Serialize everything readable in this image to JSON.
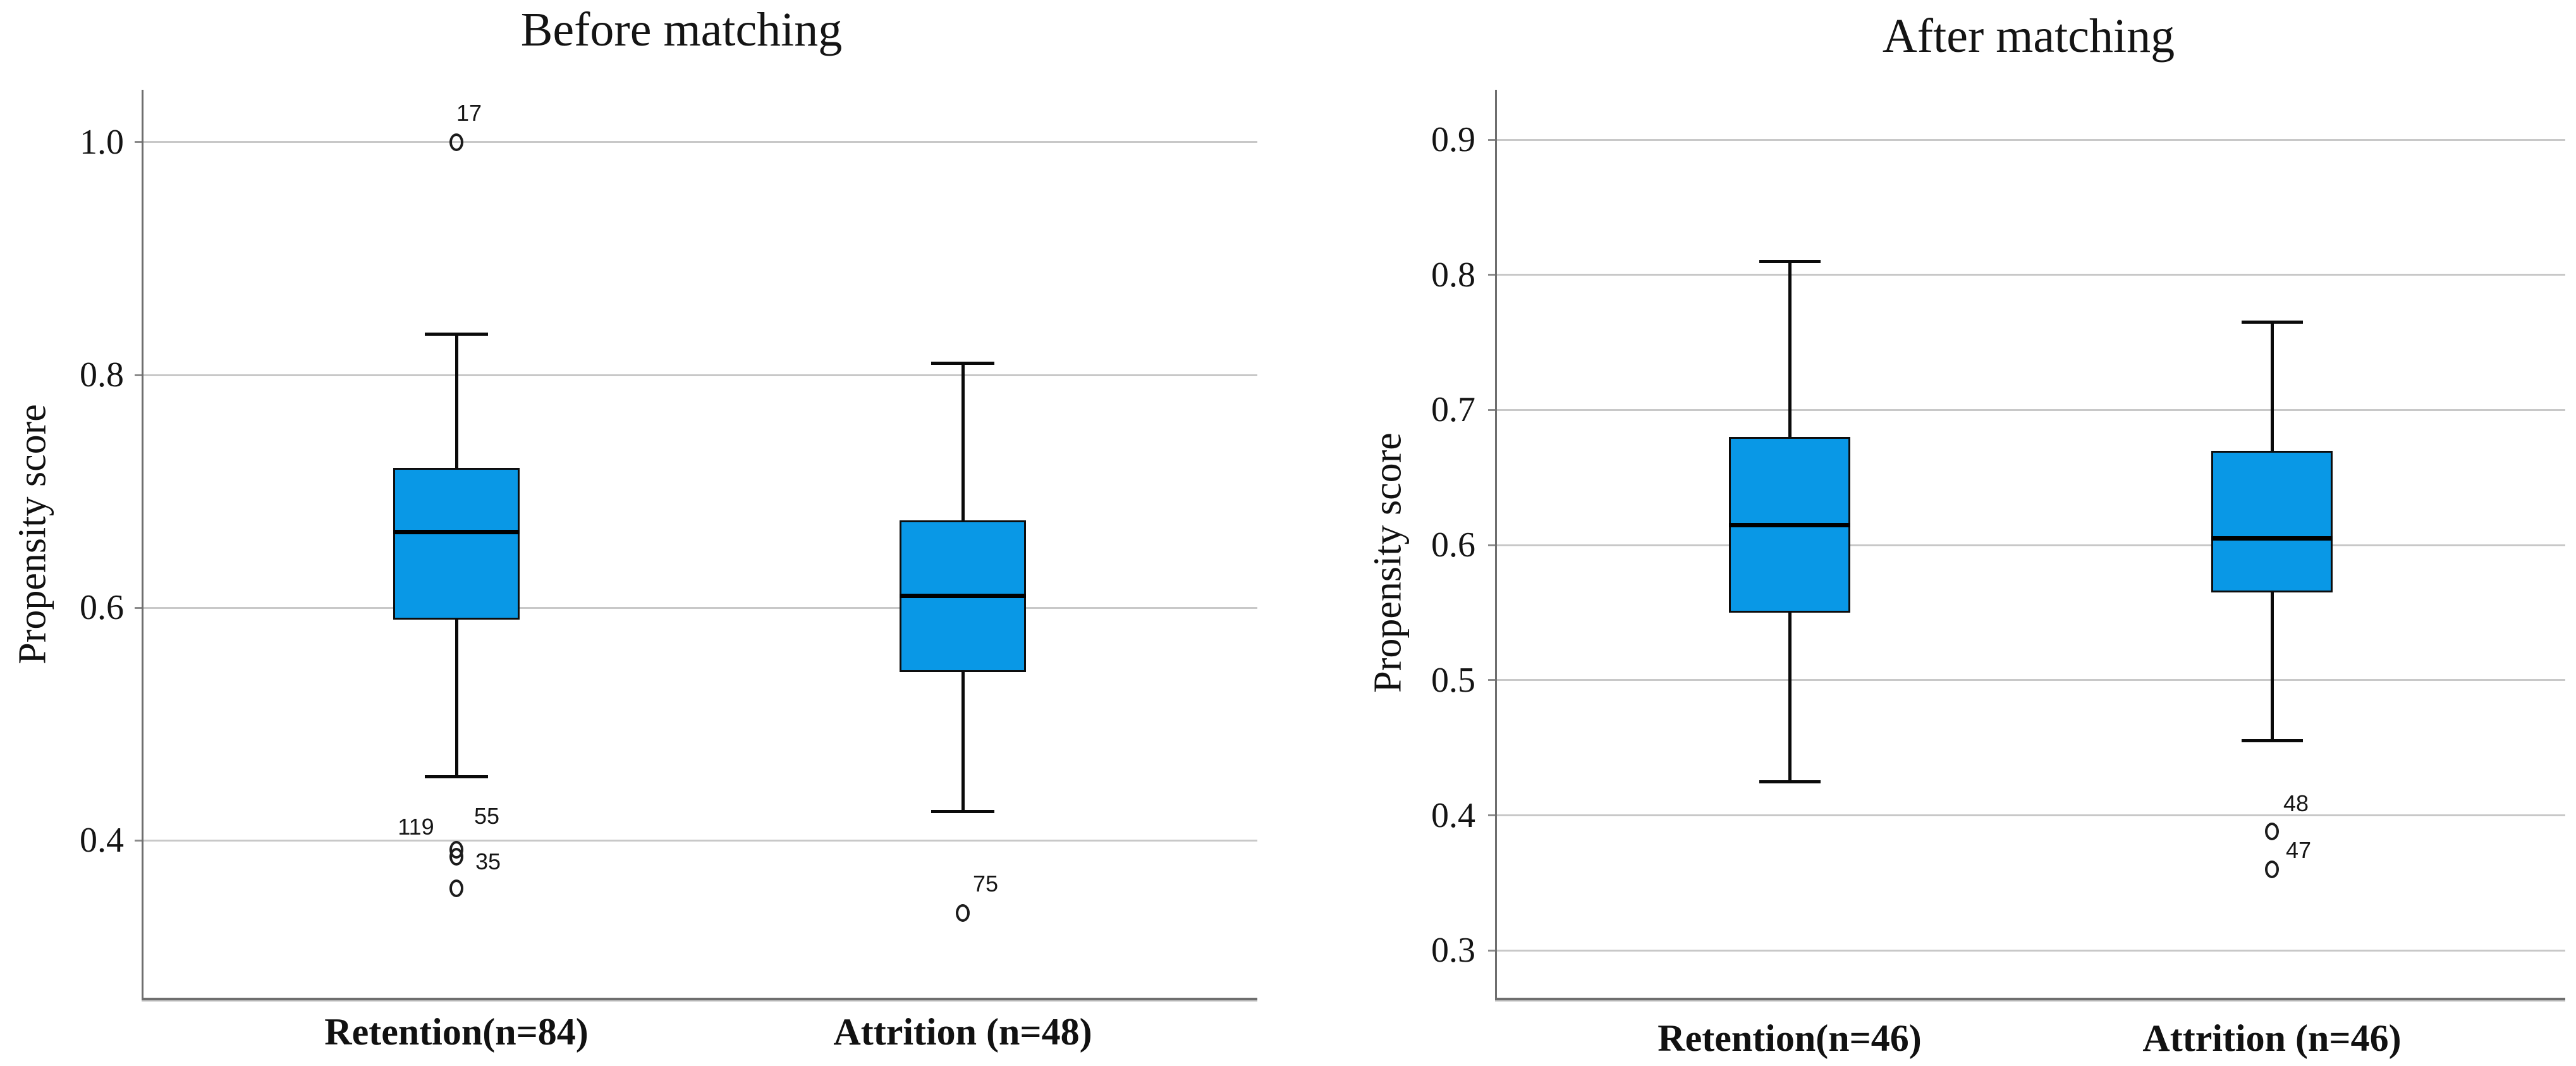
{
  "figure": {
    "description": "Box plots of propensity scores before and after matching"
  },
  "styles": {
    "box_fill": "#0998E6",
    "box_border": "#0d0d0d",
    "median_color": "#000000",
    "whisker_color": "#0a0a0a",
    "gridline_color": "#c8c8c8",
    "axis_color": "#6e6e6e",
    "text_color": "#141414"
  },
  "chart_data": [
    {
      "type": "boxplot",
      "title": "Before matching",
      "ylabel": "Propensity score",
      "ylim": [
        0.265,
        1.045
      ],
      "grid": true,
      "yticks": [
        {
          "value": 1.0,
          "label": "1.0"
        },
        {
          "value": 0.8,
          "label": "0.8"
        },
        {
          "value": 0.6,
          "label": "0.6"
        },
        {
          "value": 0.4,
          "label": "0.4"
        }
      ],
      "groups": [
        {
          "category": "Retention(n=84)",
          "whisker_low": 0.455,
          "q1": 0.59,
          "median": 0.665,
          "q3": 0.72,
          "whisker_high": 0.835,
          "outliers": [
            {
              "value": 1.0,
              "label": "17",
              "label_dx": 20,
              "label_dy": -46
            },
            {
              "value": 0.392,
              "label": "119",
              "label_dx": -64,
              "label_dy": -36
            },
            {
              "value": 0.386,
              "label": "55",
              "label_dx": 48,
              "label_dy": -64
            },
            {
              "value": 0.359,
              "label": "35",
              "label_dx": 50,
              "label_dy": -42
            }
          ]
        },
        {
          "category": "Attrition (n=48)",
          "whisker_low": 0.425,
          "q1": 0.545,
          "median": 0.61,
          "q3": 0.675,
          "whisker_high": 0.81,
          "outliers": [
            {
              "value": 0.338,
              "label": "75",
              "label_dx": 36,
              "label_dy": -46
            }
          ]
        }
      ]
    },
    {
      "type": "boxplot",
      "title": "After matching",
      "ylabel": "Propensity score",
      "ylim": [
        0.265,
        0.937
      ],
      "grid": true,
      "yticks": [
        {
          "value": 0.9,
          "label": "0.9"
        },
        {
          "value": 0.8,
          "label": "0.8"
        },
        {
          "value": 0.7,
          "label": "0.7"
        },
        {
          "value": 0.6,
          "label": "0.6"
        },
        {
          "value": 0.5,
          "label": "0.5"
        },
        {
          "value": 0.4,
          "label": "0.4"
        },
        {
          "value": 0.3,
          "label": "0.3"
        }
      ],
      "groups": [
        {
          "category": "Retention(n=46)",
          "whisker_low": 0.425,
          "q1": 0.55,
          "median": 0.615,
          "q3": 0.68,
          "whisker_high": 0.81,
          "outliers": []
        },
        {
          "category": "Attrition (n=46)",
          "whisker_low": 0.455,
          "q1": 0.565,
          "median": 0.605,
          "q3": 0.67,
          "whisker_high": 0.765,
          "outliers": [
            {
              "value": 0.388,
              "label": "48",
              "label_dx": 38,
              "label_dy": -44
            },
            {
              "value": 0.36,
              "label": "47",
              "label_dx": 42,
              "label_dy": -30
            }
          ]
        }
      ]
    }
  ]
}
